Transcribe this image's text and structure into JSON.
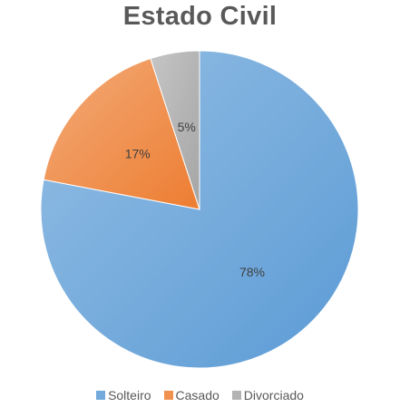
{
  "chart_data": {
    "type": "pie",
    "title": "Estado Civil",
    "categories": [
      "Solteiro",
      "Casado",
      "Divorciado"
    ],
    "values": [
      78,
      17,
      5
    ],
    "data_labels": [
      "78%",
      "17%",
      "5%"
    ],
    "colors": [
      "#5b9bd5",
      "#ed7d31",
      "#a5a5a5"
    ],
    "legend_position": "bottom",
    "start_angle_deg": 0,
    "direction": "clockwise"
  }
}
